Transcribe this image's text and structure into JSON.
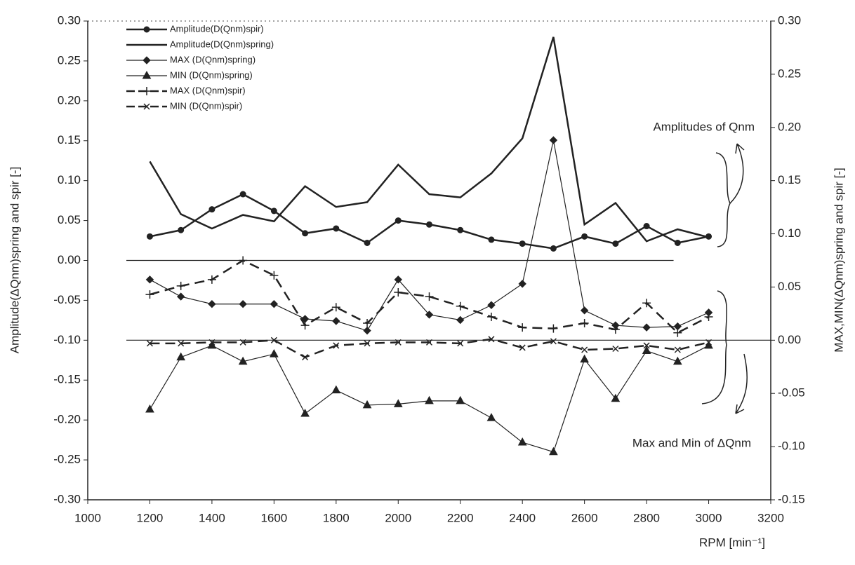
{
  "chart_data": {
    "type": "line",
    "x_label": "RPM [min⁻¹]",
    "y_label": "Amplitude(ΔQnm)spring and spir [-]",
    "y2_label": "MAX,MIN(ΔQnm)spring and spir [-]",
    "annotations": [
      "Amplitudes of Qnm",
      "Max and Min of ΔQnm"
    ],
    "x": [
      1200,
      1300,
      1400,
      1500,
      1600,
      1700,
      1800,
      1900,
      2000,
      2100,
      2200,
      2300,
      2400,
      2500,
      2600,
      2700,
      2800,
      2900,
      3000
    ],
    "xlim": [
      1000,
      3200
    ],
    "xticks": [
      1000,
      1200,
      1400,
      1600,
      1800,
      2000,
      2200,
      2400,
      2600,
      2800,
      3000,
      3200
    ],
    "ylim": [
      -0.3,
      0.3
    ],
    "yticks": [
      {
        "value": -0.3,
        "label": "-0.30"
      },
      {
        "value": -0.25,
        "label": "-0.25"
      },
      {
        "value": -0.2,
        "label": "-0.20"
      },
      {
        "value": -0.15,
        "label": "-0.15"
      },
      {
        "value": -0.1,
        "label": "-0.10"
      },
      {
        "value": -0.05,
        "label": "-0.05"
      },
      {
        "value": 0,
        "label": "0.00"
      },
      {
        "value": 0.05,
        "label": "0.05"
      },
      {
        "value": 0.1,
        "label": "0.10"
      },
      {
        "value": 0.15,
        "label": "0.15"
      },
      {
        "value": 0.2,
        "label": "0.20"
      },
      {
        "value": 0.25,
        "label": "0.25"
      },
      {
        "value": 0.3,
        "label": "0.30"
      }
    ],
    "y2lim": [
      -0.15,
      0.3
    ],
    "y2ticks": [
      {
        "value": -0.15,
        "label": "-0.15"
      },
      {
        "value": -0.1,
        "label": "-0.10"
      },
      {
        "value": -0.05,
        "label": "-0.05"
      },
      {
        "value": 0,
        "label": "0.00"
      },
      {
        "value": 0.05,
        "label": "0.05"
      },
      {
        "value": 0.1,
        "label": "0.10"
      },
      {
        "value": 0.15,
        "label": "0.15"
      },
      {
        "value": 0.2,
        "label": "0.20"
      },
      {
        "value": 0.25,
        "label": "0.25"
      },
      {
        "value": 0.3,
        "label": "0.30"
      }
    ],
    "series": [
      {
        "name": "Amplitude(D(Qnm)spir)",
        "color": "#222222",
        "marker": "circle",
        "style": "thick",
        "values": [
          0.03,
          0.038,
          0.064,
          0.083,
          0.062,
          0.034,
          0.04,
          0.022,
          0.05,
          0.045,
          0.038,
          0.026,
          0.021,
          0.015,
          0.03,
          0.021,
          0.043,
          0.022,
          0.03
        ]
      },
      {
        "name": "Amplitude(D(Qnm)spring)",
        "color": "#222222",
        "marker": "none",
        "style": "thick",
        "values": [
          0.124,
          0.058,
          0.04,
          0.057,
          0.049,
          0.093,
          0.067,
          0.073,
          0.12,
          0.083,
          0.079,
          0.109,
          0.153,
          0.28,
          0.045,
          0.072,
          0.024,
          0.039,
          0.029
        ]
      },
      {
        "name": "MAX (D(Qnm)spring)",
        "color": "#222222",
        "marker": "diamond",
        "style": "thin",
        "axis": "y2",
        "values": [
          0.057,
          0.041,
          0.034,
          0.034,
          0.034,
          0.02,
          0.018,
          0.009,
          0.057,
          0.024,
          0.019,
          0.033,
          0.053,
          0.188,
          0.028,
          0.014,
          0.012,
          0.013,
          0.026
        ]
      },
      {
        "name": "MIN (D(Qnm)spring)",
        "color": "#222222",
        "marker": "triangle",
        "style": "thin",
        "axis": "y2",
        "values": [
          -0.065,
          -0.016,
          -0.005,
          -0.02,
          -0.013,
          -0.069,
          -0.047,
          -0.061,
          -0.06,
          -0.057,
          -0.057,
          -0.073,
          -0.096,
          -0.105,
          -0.018,
          -0.055,
          -0.01,
          -0.02,
          -0.005
        ]
      },
      {
        "name": "MAX (D(Qnm)spir)",
        "color": "#222222",
        "marker": "plus",
        "style": "dashed",
        "axis": "y2",
        "values": [
          0.043,
          0.051,
          0.057,
          0.075,
          0.061,
          0.014,
          0.031,
          0.016,
          0.045,
          0.041,
          0.032,
          0.022,
          0.012,
          0.011,
          0.016,
          0.01,
          0.035,
          0.007,
          0.022
        ]
      },
      {
        "name": "MIN (D(Qnm)spir)",
        "color": "#222222",
        "marker": "cross",
        "style": "dashed",
        "axis": "y2",
        "values": [
          -0.003,
          -0.003,
          -0.002,
          -0.002,
          0,
          -0.016,
          -0.005,
          -0.003,
          -0.002,
          -0.002,
          -0.003,
          0.001,
          -0.007,
          -0.001,
          -0.009,
          -0.008,
          -0.005,
          -0.009,
          -0.002
        ]
      }
    ]
  }
}
